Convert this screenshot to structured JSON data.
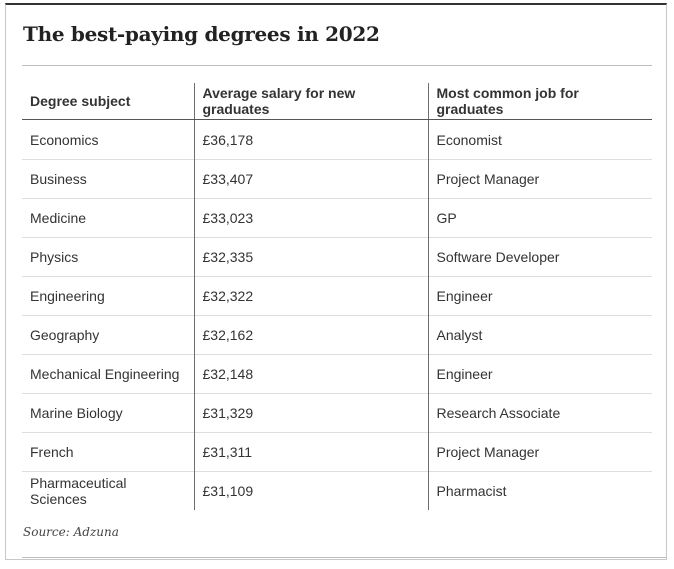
{
  "title": "The best-paying degrees in 2022",
  "source": "Source: Adzuna",
  "chart_data": {
    "type": "table",
    "title": "The best-paying degrees in 2022",
    "columns": [
      "Degree subject",
      "Average salary for new graduates",
      "Most common job for graduates"
    ],
    "rows": [
      [
        "Economics",
        "£36,178",
        "Economist"
      ],
      [
        "Business",
        "£33,407",
        "Project Manager"
      ],
      [
        "Medicine",
        "£33,023",
        "GP"
      ],
      [
        "Physics",
        "£32,335",
        "Software Developer"
      ],
      [
        "Engineering",
        "£32,322",
        "Engineer"
      ],
      [
        "Geography",
        "£32,162",
        "Analyst"
      ],
      [
        "Mechanical Engineering",
        "£32,148",
        "Engineer"
      ],
      [
        "Marine Biology",
        "£31,329",
        "Research Associate"
      ],
      [
        "French",
        "£31,311",
        "Project Manager"
      ],
      [
        "Pharmaceutical Sciences",
        "£31,109",
        "Pharmacist"
      ]
    ],
    "source": "Source: Adzuna"
  }
}
